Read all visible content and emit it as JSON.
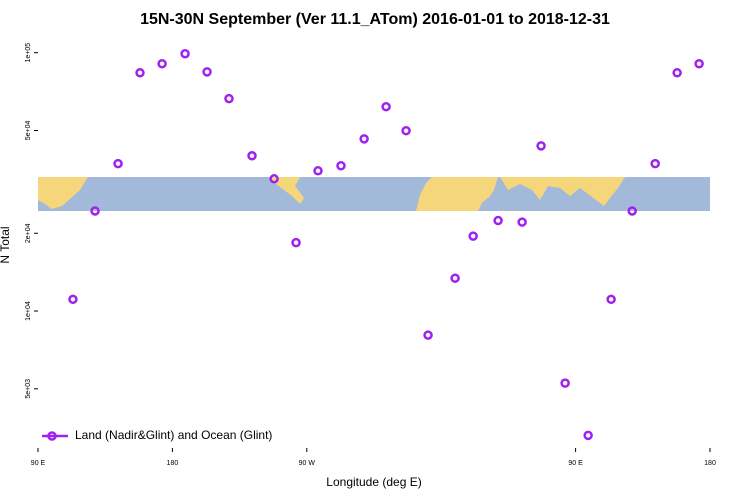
{
  "chart_data": {
    "type": "scatter",
    "title": "15N-30N September (Ver 11.1_ATom)   2016-01-01 to 2018-12-31",
    "x_label": "Longitude (deg E)",
    "y_label": "N Total",
    "log_y": true,
    "xlim": [
      90,
      540
    ],
    "xticks": [
      {
        "value": 90,
        "label": "90 E"
      },
      {
        "value": 180,
        "label": "180"
      },
      {
        "value": 270,
        "label": "90 W"
      },
      {
        "value": 450,
        "label": "90 E"
      },
      {
        "value": 540,
        "label": "180"
      }
    ],
    "ylim": [
      2950,
      114000
    ],
    "yticks": [
      {
        "value": 5000,
        "label": "5e+03"
      },
      {
        "value": 10000,
        "label": "1e+04"
      },
      {
        "value": 20000,
        "label": "2e+04"
      },
      {
        "value": 50000,
        "label": "5e+04"
      },
      {
        "value": 100000,
        "label": "1e+05"
      }
    ],
    "legend": "bottom-left",
    "x": [
      113.4,
      128.2,
      143.6,
      158.3,
      173.1,
      188.5,
      203.2,
      217.9,
      233.3,
      248.1,
      262.8,
      277.5,
      292.9,
      308.4,
      323.1,
      336.5,
      351.2,
      369.3,
      381.4,
      398.1,
      414.2,
      426.9,
      443.0,
      458.4,
      473.8,
      487.9,
      503.3,
      518.0,
      532.7
    ],
    "series": [
      {
        "name": "Land (Nadir&Glint) and Ocean (Glint)",
        "color": "#a020f0",
        "values": [
          11100,
          24400,
          37200,
          83600,
          90600,
          99100,
          84300,
          66400,
          39900,
          32500,
          18400,
          34900,
          36500,
          46400,
          61800,
          49900,
          8070,
          13400,
          19500,
          22400,
          22100,
          43600,
          5260,
          3300,
          11100,
          24400,
          37200,
          83600,
          90600
        ]
      }
    ]
  }
}
